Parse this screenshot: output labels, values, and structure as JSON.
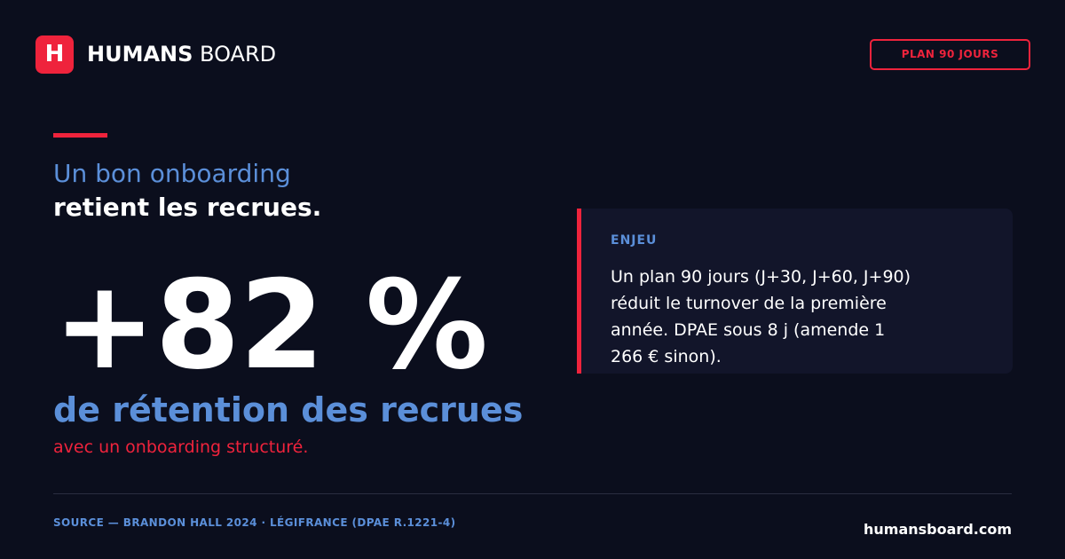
{
  "header": {
    "logo_letter": "H",
    "brand_strong": "HUMANS",
    "brand_light": "BOARD",
    "cta_label": "PLAN 90 JOURS"
  },
  "headline": {
    "line1": "Un bon onboarding",
    "line2": "retient les recrues."
  },
  "stat": {
    "value": "+82 %",
    "label": "de rétention des recrues",
    "sub": "avec un onboarding structuré."
  },
  "callout": {
    "label": "ENJEU",
    "body": "Un plan 90 jours (J+30, J+60, J+90) réduit le turnover de la première année. DPAE sous 8 j (amende 1 266 € sinon)."
  },
  "footer": {
    "source": "SOURCE — BRANDON HALL 2024 · LÉGIFRANCE (DPAE R.1221-4)",
    "site": "humansboard.com"
  },
  "colors": {
    "background": "#0b0e1d",
    "accent_red": "#ef233c",
    "accent_blue": "#5b8fd9",
    "card": "#12152a"
  }
}
